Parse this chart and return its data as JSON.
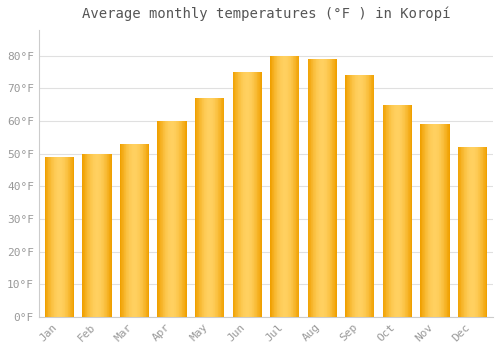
{
  "title": "Average monthly temperatures (°F ) in Koropí",
  "months": [
    "Jan",
    "Feb",
    "Mar",
    "Apr",
    "May",
    "Jun",
    "Jul",
    "Aug",
    "Sep",
    "Oct",
    "Nov",
    "Dec"
  ],
  "values": [
    49,
    50,
    53,
    60,
    67,
    75,
    80,
    79,
    74,
    65,
    59,
    52
  ],
  "bar_color_center": "#FFD060",
  "bar_color_edge": "#F0A000",
  "background_color": "#FFFFFF",
  "plot_bg_color": "#FFFFFF",
  "grid_color": "#E0E0E0",
  "tick_label_color": "#999999",
  "title_color": "#555555",
  "ylim": [
    0,
    88
  ],
  "yticks": [
    0,
    10,
    20,
    30,
    40,
    50,
    60,
    70,
    80
  ],
  "ytick_labels": [
    "0°F",
    "10°F",
    "20°F",
    "30°F",
    "40°F",
    "50°F",
    "60°F",
    "70°F",
    "80°F"
  ],
  "title_fontsize": 10,
  "tick_fontsize": 8
}
